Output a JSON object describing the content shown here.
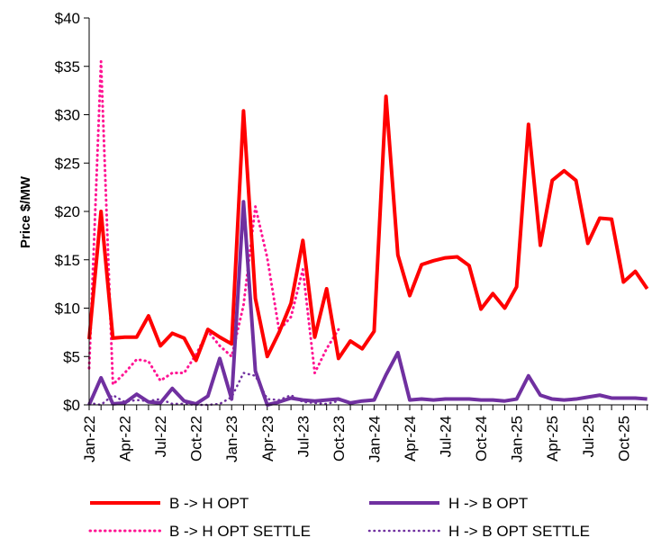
{
  "chart_data": {
    "type": "line",
    "title": "",
    "xlabel": "",
    "ylabel": "Price  $/MW",
    "ylim": [
      0,
      40
    ],
    "y_ticks": [
      "$0",
      "$5",
      "$10",
      "$15",
      "$20",
      "$25",
      "$30",
      "$35",
      "$40"
    ],
    "x_tick_labels": [
      "Jan-22",
      "Apr-22",
      "Jul-22",
      "Oct-22",
      "Jan-23",
      "Apr-23",
      "Jul-23",
      "Oct-23",
      "Jan-24",
      "Apr-24",
      "Jul-24",
      "Oct-24",
      "Jan-25",
      "Apr-25",
      "Jul-25",
      "Oct-25"
    ],
    "x_months": [
      "Jan-22",
      "Feb-22",
      "Mar-22",
      "Apr-22",
      "May-22",
      "Jun-22",
      "Jul-22",
      "Aug-22",
      "Sep-22",
      "Oct-22",
      "Nov-22",
      "Dec-22",
      "Jan-23",
      "Feb-23",
      "Mar-23",
      "Apr-23",
      "May-23",
      "Jun-23",
      "Jul-23",
      "Aug-23",
      "Sep-23",
      "Oct-23",
      "Nov-23",
      "Dec-23",
      "Jan-24",
      "Feb-24",
      "Mar-24",
      "Apr-24",
      "May-24",
      "Jun-24",
      "Jul-24",
      "Aug-24",
      "Sep-24",
      "Oct-24",
      "Nov-24",
      "Dec-24",
      "Jan-25",
      "Feb-25",
      "Mar-25",
      "Apr-25",
      "May-25",
      "Jun-25",
      "Jul-25",
      "Aug-25",
      "Sep-25",
      "Oct-25",
      "Nov-25",
      "Dec-25"
    ],
    "grid": false,
    "legend_placement": "bottom",
    "series": [
      {
        "name": "B -> H  OPT",
        "color": "#ff0000",
        "style": "solid",
        "width": 4,
        "values": [
          6.8,
          20.0,
          6.9,
          7.0,
          7.0,
          9.2,
          6.1,
          7.4,
          6.9,
          4.6,
          7.8,
          7.0,
          6.3,
          30.4,
          11.0,
          5.0,
          7.5,
          10.5,
          17.0,
          7.0,
          12.0,
          4.8,
          6.6,
          5.8,
          7.6,
          31.9,
          15.5,
          11.3,
          14.5,
          14.9,
          15.2,
          15.3,
          14.4,
          9.9,
          11.5,
          10.0,
          12.2,
          29.0,
          16.5,
          23.2,
          24.2,
          23.2,
          16.7,
          19.3,
          19.2,
          12.7,
          13.8,
          12.0
        ]
      },
      {
        "name": "H -> B  OPT",
        "color": "#7030a0",
        "style": "solid",
        "width": 4,
        "values": [
          0.0,
          2.8,
          0.1,
          0.2,
          1.1,
          0.3,
          0.2,
          1.7,
          0.4,
          0.1,
          0.9,
          4.8,
          0.6,
          21.0,
          3.5,
          0.0,
          0.3,
          0.7,
          0.5,
          0.4,
          0.5,
          0.6,
          0.2,
          0.4,
          0.5,
          3.1,
          5.4,
          0.5,
          0.6,
          0.5,
          0.6,
          0.6,
          0.6,
          0.5,
          0.5,
          0.4,
          0.6,
          3.0,
          1.0,
          0.6,
          0.5,
          0.6,
          0.8,
          1.0,
          0.7,
          0.7,
          0.7,
          0.6
        ]
      },
      {
        "name": "B -> H  OPT SETTLE",
        "color": "#ff1493",
        "style": "dotted",
        "width": 3,
        "values": [
          3.8,
          35.5,
          2.1,
          3.3,
          4.7,
          4.5,
          2.5,
          3.3,
          3.3,
          5.2,
          7.6,
          6.1,
          5.0,
          10.3,
          20.5,
          15.2,
          7.7,
          9.1,
          14.0,
          3.3,
          5.8,
          7.8,
          null,
          null,
          null,
          null,
          null,
          null,
          null,
          null,
          null,
          null,
          null,
          null,
          null,
          null,
          null,
          null,
          null,
          null,
          null,
          null,
          null,
          null,
          null,
          null,
          null,
          null
        ]
      },
      {
        "name": "H -> B  OPT SETTLE",
        "color": "#7030a0",
        "style": "dotted",
        "width": 2.5,
        "values": [
          0.2,
          0.0,
          1.0,
          0.3,
          0.5,
          0.4,
          0.6,
          0.1,
          0.1,
          0.0,
          0.0,
          0.1,
          0.8,
          3.3,
          3.0,
          0.6,
          0.5,
          1.0,
          0.3,
          0.2,
          0.1,
          0.4,
          null,
          null,
          null,
          null,
          null,
          null,
          null,
          null,
          null,
          null,
          null,
          null,
          null,
          null,
          null,
          null,
          null,
          null,
          null,
          null,
          null,
          null,
          null,
          null,
          null,
          null
        ]
      }
    ]
  }
}
